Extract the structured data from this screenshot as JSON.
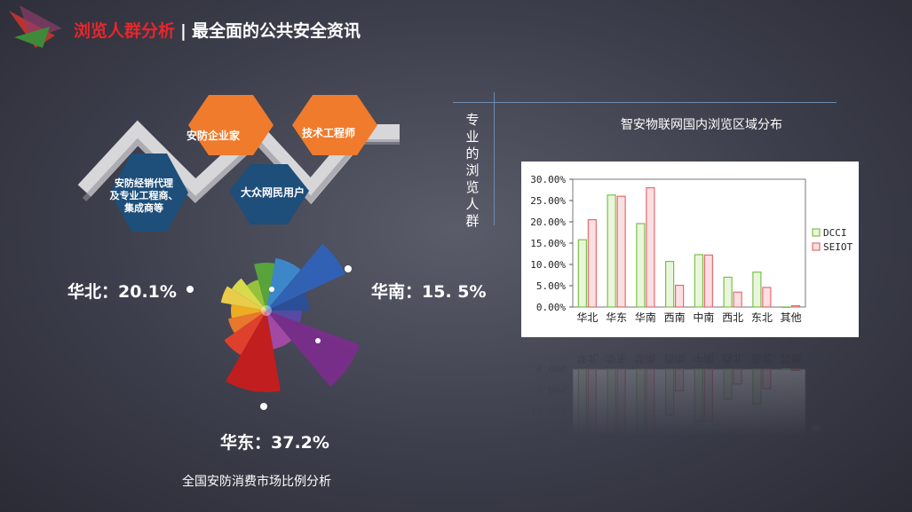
{
  "header": {
    "title_red": "浏览人群分析",
    "separator": "|",
    "title_white": "最全面的公共安全资讯"
  },
  "personas": {
    "items": [
      {
        "label": "安防企业家"
      },
      {
        "label": "技术工程师"
      },
      {
        "label": "安防经销代理\n及专业工程商、\n集成商等"
      },
      {
        "label": "大众网民用户"
      }
    ]
  },
  "side_label": "专业的浏览人群",
  "rose": {
    "labels": [
      "华北：20.1%",
      "华南：15. 5%",
      "华东：37.2%"
    ],
    "caption": "全国安防消费市场比例分析"
  },
  "colors": {
    "accent_red": "#e8262c",
    "orange": "#f07b2c",
    "navy": "#1e4e7a",
    "dcci": "#7cc04a",
    "seiot": "#e66a72"
  },
  "chart_data": {
    "type": "bar",
    "title": "智安物联网国内浏览区域分布",
    "categories": [
      "华北",
      "华东",
      "华南",
      "西南",
      "中南",
      "西北",
      "东北",
      "其他"
    ],
    "series": [
      {
        "name": "DCCI",
        "values": [
          15.8,
          26.3,
          19.6,
          10.7,
          12.3,
          7.0,
          8.2,
          0.0
        ]
      },
      {
        "name": "SEIOT",
        "values": [
          20.5,
          26.0,
          28.0,
          5.1,
          12.2,
          3.5,
          4.6,
          0.3
        ]
      }
    ],
    "yticks": [
      "0.00%",
      "5.00%",
      "10.00%",
      "15.00%",
      "20.00%",
      "25.00%",
      "30.00%"
    ],
    "ylim": [
      0,
      30
    ],
    "legend_position": "right",
    "grid": false
  }
}
